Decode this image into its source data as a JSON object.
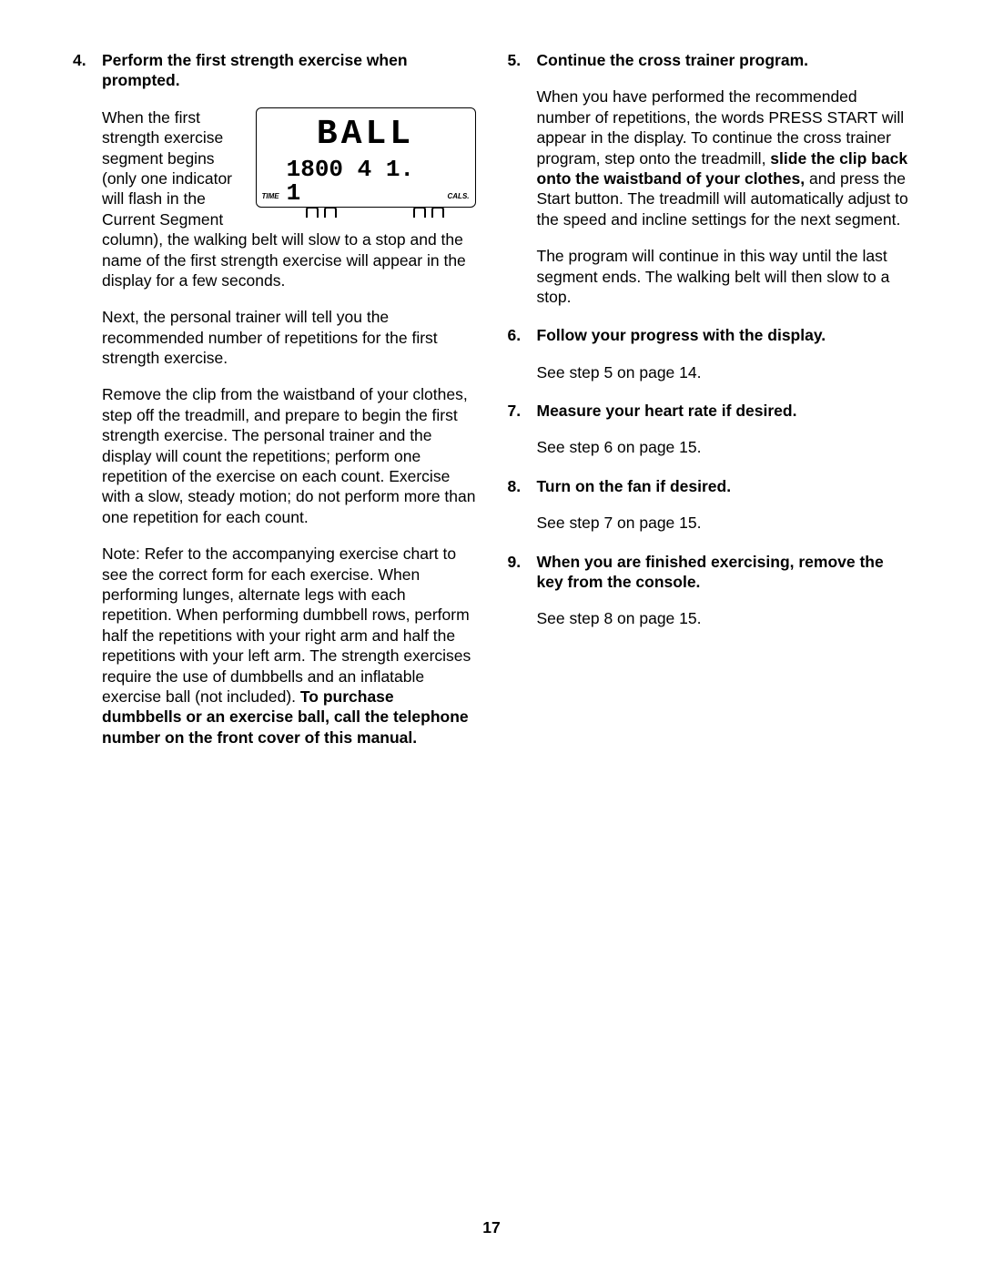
{
  "page_number": "17",
  "left": {
    "item4": {
      "num": "4.",
      "title": "Perform the first strength exercise when prompted.",
      "lcd": {
        "word": "BALL",
        "time_label": "TIME",
        "digits": "1800 4 1. 1",
        "cals_label": "CALS."
      },
      "p1": "When the first strength exercise segment begins (only one indicator will flash in the Current Segment column), the walking belt will slow to a stop and the name of the first strength exercise will appear in the display for a few seconds.",
      "p2": "Next, the personal trainer will tell you the recommended number of repetitions for the first strength exercise.",
      "p3": "Remove the clip from the waistband of your clothes, step off the treadmill, and prepare to begin the first strength exercise. The personal trainer and the display will count the repetitions; perform one repetition of the exercise on each count. Exercise with a slow, steady motion; do not perform more than one repetition for each count.",
      "p4a": "Note: Refer to the accompanying exercise chart to see the correct form for each exercise. When performing lunges, alternate legs with each repetition. When performing dumbbell rows, perform half the repetitions with your right arm and half the repetitions with your left arm. The strength exercises require the use of dumbbells and an inflatable exercise ball (not included). ",
      "p4b": "To purchase dumbbells or an exercise ball, call the telephone number on the front cover of this manual."
    }
  },
  "right": {
    "item5": {
      "num": "5.",
      "title": "Continue the cross trainer program.",
      "p1a": "When you have performed the recommended number of repetitions, the words PRESS START will appear in the display. To continue the cross trainer program, step onto the treadmill, ",
      "p1b": "slide the clip back onto the waistband of your clothes,",
      "p1c": " and press the Start button. The treadmill will automatically adjust to the speed and incline settings for the next segment.",
      "p2": "The program will continue in this way until the last segment ends. The walking belt will then slow to a stop."
    },
    "item6": {
      "num": "6.",
      "title": "Follow your progress with the display.",
      "p1": "See step 5 on page 14."
    },
    "item7": {
      "num": "7.",
      "title": "Measure your heart rate if desired.",
      "p1": "See step 6 on page 15."
    },
    "item8": {
      "num": "8.",
      "title": "Turn on the fan if desired.",
      "p1": "See step 7 on page 15."
    },
    "item9": {
      "num": "9.",
      "title": "When you are finished exercising, remove the key from the console.",
      "p1": "See step 8 on page 15."
    }
  }
}
